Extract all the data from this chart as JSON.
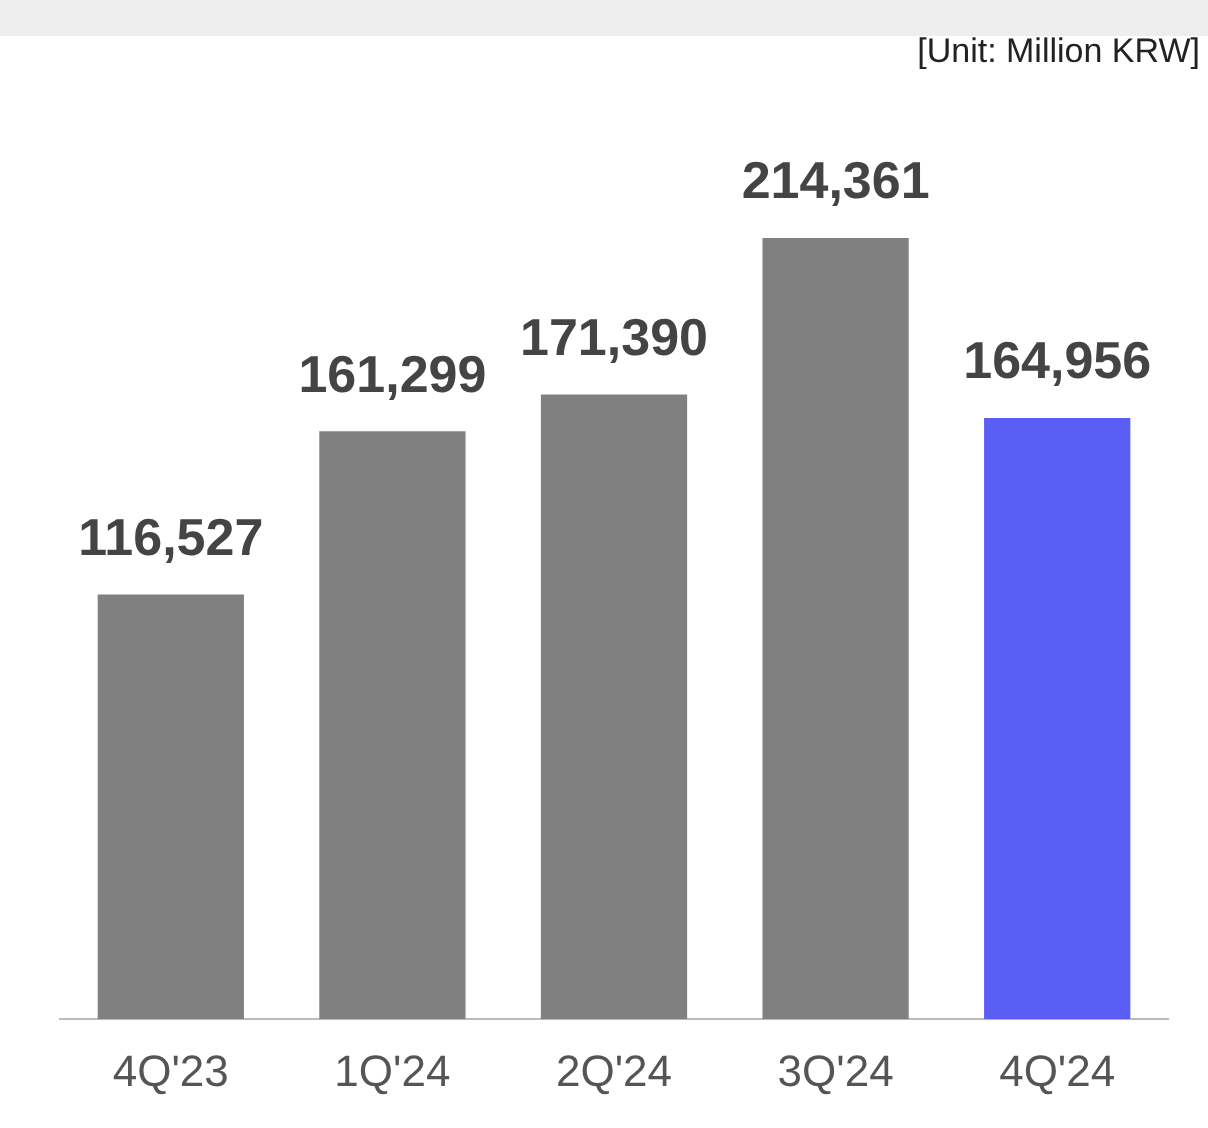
{
  "chart_data": {
    "type": "bar",
    "subtitle": "[Unit: Million KRW]",
    "categories": [
      "4Q'23",
      "1Q'24",
      "2Q'24",
      "3Q'24",
      "4Q'24"
    ],
    "values": [
      116527,
      161299,
      171390,
      214361,
      164956
    ],
    "colors": [
      "#808080",
      "#808080",
      "#808080",
      "#808080",
      "#5b5ef5"
    ],
    "value_labels": [
      "116,527",
      "161,299",
      "171,390",
      "214,361",
      "164,956"
    ],
    "grid": false,
    "legend": false
  }
}
